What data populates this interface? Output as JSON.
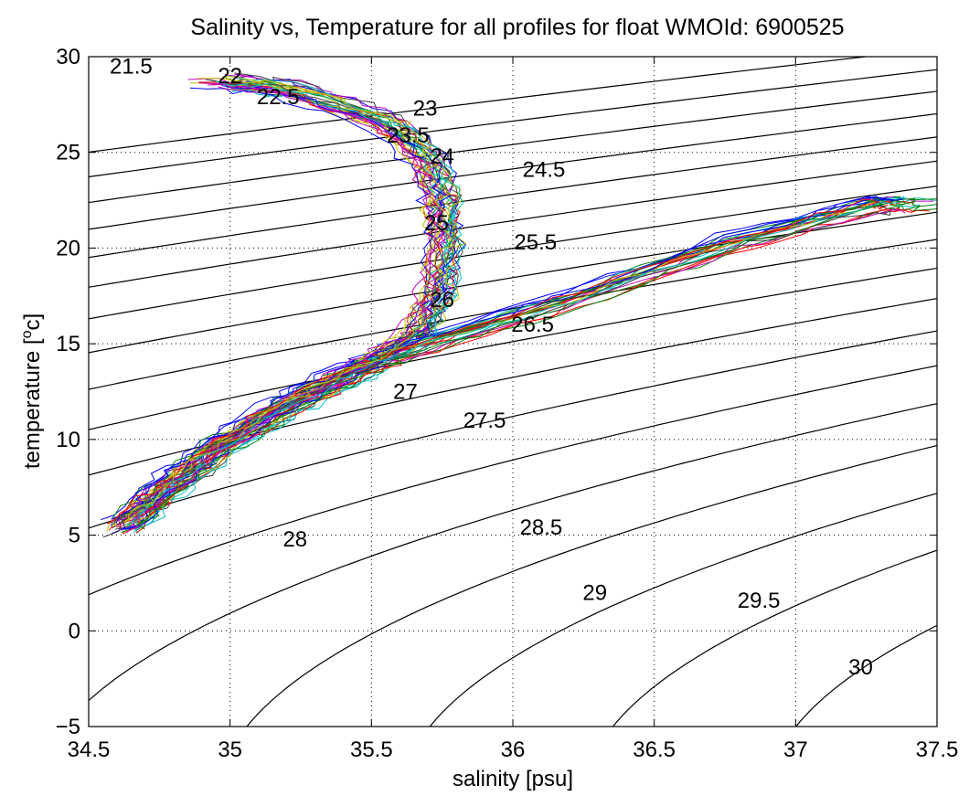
{
  "chart_data": {
    "type": "line",
    "title": "Salinity vs, Temperature for all profiles for float WMOId: 6900525",
    "xlabel": "salinity [psu]",
    "ylabel_main": "temperature [",
    "ylabel_sup": "o",
    "ylabel_tail": "c]",
    "xlim": [
      34.5,
      37.5
    ],
    "ylim": [
      -5,
      30
    ],
    "x_ticks": [
      "34.5",
      "35",
      "35.5",
      "36",
      "36.5",
      "37",
      "37.5"
    ],
    "y_ticks": [
      "−5",
      "0",
      "5",
      "10",
      "15",
      "20",
      "25",
      "30"
    ],
    "grid": "dotted",
    "isopycnals": {
      "labels": [
        "21.5",
        "22",
        "22.5",
        "23",
        "23.5",
        "24",
        "24.5",
        "25",
        "25.5",
        "26",
        "26.5",
        "27",
        "27.5",
        "28",
        "28.5",
        "29",
        "29.5",
        "30"
      ],
      "sigma_values": [
        21.5,
        22,
        22.5,
        23,
        23.5,
        24,
        24.5,
        25,
        25.5,
        26,
        26.5,
        27,
        27.5,
        28,
        28.5,
        29,
        29.5,
        30
      ],
      "label_positions": [
        [
          34.65,
          29.5
        ],
        [
          35.0,
          29.0
        ],
        [
          35.17,
          27.9
        ],
        [
          35.69,
          27.3
        ],
        [
          35.63,
          25.9
        ],
        [
          35.75,
          24.8
        ],
        [
          36.11,
          24.1
        ],
        [
          35.73,
          21.3
        ],
        [
          36.08,
          20.3
        ],
        [
          35.75,
          17.3
        ],
        [
          36.07,
          16.0
        ],
        [
          35.62,
          12.5
        ],
        [
          35.9,
          11.0
        ],
        [
          35.23,
          4.8
        ],
        [
          36.1,
          5.4
        ],
        [
          36.29,
          2.0
        ],
        [
          36.87,
          1.6
        ],
        [
          37.23,
          -1.9
        ]
      ]
    },
    "profiles": {
      "count": 55,
      "colors": [
        "#0000ff",
        "#008000",
        "#ff0000",
        "#00bfbf",
        "#bf00bf",
        "#bfbf00",
        "#404040"
      ],
      "anchor_points": [
        [
          34.62,
          5.4
        ],
        [
          34.78,
          7.5
        ],
        [
          34.95,
          9.5
        ],
        [
          35.2,
          11.8
        ],
        [
          35.45,
          13.6
        ],
        [
          35.65,
          15.4
        ],
        [
          35.72,
          17.5
        ],
        [
          35.75,
          20.0
        ],
        [
          35.74,
          22.5
        ],
        [
          35.7,
          24.5
        ],
        [
          35.55,
          26.5
        ],
        [
          35.2,
          28.3
        ],
        [
          34.95,
          28.7
        ]
      ],
      "high_salinity_branch": [
        [
          35.6,
          14.5
        ],
        [
          36.2,
          17.2
        ],
        [
          36.8,
          20.3
        ],
        [
          37.3,
          22.3
        ],
        [
          37.4,
          22.2
        ]
      ]
    }
  }
}
